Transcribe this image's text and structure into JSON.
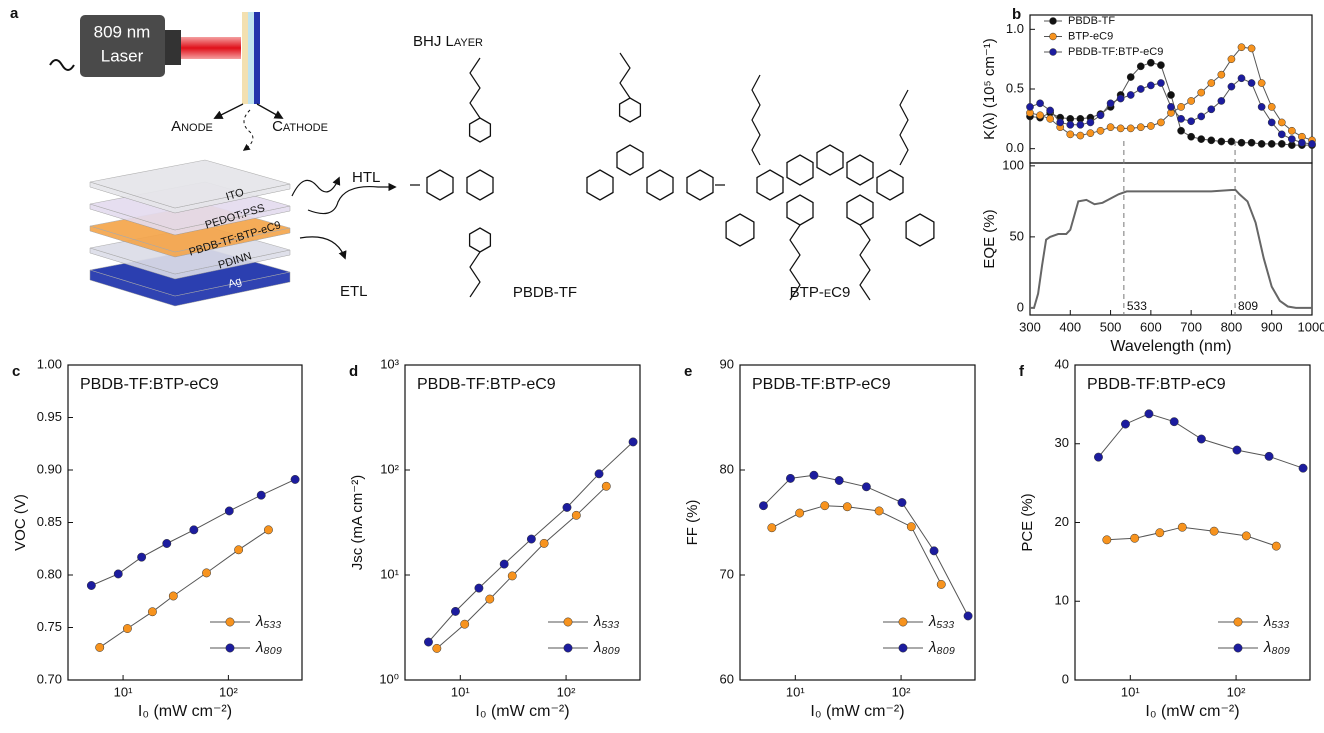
{
  "diagram": {
    "panel": "a",
    "laser": [
      "809 nm",
      "Laser"
    ],
    "anode": "Anode",
    "cathode": "Cathode",
    "layers": [
      "ITO",
      "PEDOT:PSS",
      "PBDB-TF:BTP-eC9",
      "PDINN",
      "Ag"
    ],
    "htl": "HTL",
    "etl": "ETL",
    "bhj": "BHJ Layer",
    "molecules": [
      "PBDB-TF",
      "BTP-eC9"
    ]
  },
  "chart_data": [
    {
      "type": "line",
      "panel": "b",
      "ylabel": "K(λ) (10⁵ cm⁻¹)",
      "marker": true,
      "legend": "upper left",
      "x": [
        300,
        325,
        350,
        375,
        400,
        425,
        450,
        475,
        500,
        525,
        550,
        575,
        600,
        625,
        650,
        675,
        700,
        725,
        750,
        775,
        800,
        825,
        850,
        875,
        900,
        925,
        950,
        975,
        1000
      ],
      "xlim": [
        300,
        1000
      ],
      "ylim": [
        -0.12,
        1.12
      ],
      "yticks": [
        {
          "value": 0,
          "label": "0.0"
        },
        0.5,
        {
          "value": 1,
          "label": "1.0"
        }
      ],
      "series": [
        {
          "name": "PBDB-TF",
          "color": "#111111",
          "values": [
            0.27,
            0.26,
            0.3,
            0.26,
            0.25,
            0.25,
            0.26,
            0.29,
            0.35,
            0.45,
            0.6,
            0.69,
            0.72,
            0.7,
            0.45,
            0.15,
            0.1,
            0.08,
            0.07,
            0.06,
            0.06,
            0.05,
            0.05,
            0.04,
            0.04,
            0.04,
            0.03,
            0.03,
            0.03
          ]
        },
        {
          "name": "BTP-eC9",
          "color": "#f7931e",
          "values": [
            0.3,
            0.28,
            0.25,
            0.18,
            0.12,
            0.11,
            0.13,
            0.15,
            0.18,
            0.17,
            0.17,
            0.18,
            0.19,
            0.22,
            0.3,
            0.35,
            0.4,
            0.47,
            0.55,
            0.62,
            0.75,
            0.85,
            0.84,
            0.55,
            0.35,
            0.22,
            0.15,
            0.1,
            0.07
          ]
        },
        {
          "name": "PBDB-TF:BTP-eC9",
          "color": "#1c1c9e",
          "values": [
            0.35,
            0.38,
            0.32,
            0.22,
            0.2,
            0.2,
            0.22,
            0.28,
            0.38,
            0.42,
            0.45,
            0.5,
            0.53,
            0.55,
            0.35,
            0.25,
            0.23,
            0.27,
            0.33,
            0.4,
            0.52,
            0.59,
            0.55,
            0.35,
            0.22,
            0.12,
            0.08,
            0.05,
            0.04
          ]
        }
      ]
    },
    {
      "type": "line",
      "ylabel": "EQE (%)",
      "xlabel": "Wavelength (nm)",
      "marker": false,
      "x": [
        300,
        310,
        320,
        330,
        340,
        350,
        370,
        390,
        400,
        410,
        420,
        440,
        460,
        480,
        500,
        520,
        540,
        560,
        600,
        650,
        700,
        750,
        800,
        810,
        820,
        840,
        860,
        880,
        900,
        920,
        940,
        960,
        980,
        1000
      ],
      "xlim": [
        300,
        1000
      ],
      "xticks": [
        300,
        400,
        500,
        600,
        700,
        800,
        900,
        1000
      ],
      "ylim": [
        -5,
        102
      ],
      "yticks": [
        0,
        50,
        100
      ],
      "annotations": [
        {
          "x": 533,
          "text": "533"
        },
        {
          "x": 809,
          "text": "809"
        }
      ],
      "series": [
        {
          "color": "#666666",
          "values": [
            0,
            0,
            10,
            30,
            48,
            50,
            52,
            52,
            55,
            65,
            75,
            76,
            73,
            74,
            77,
            80,
            82,
            82,
            82,
            82,
            82,
            82,
            83,
            83,
            80,
            75,
            60,
            35,
            15,
            5,
            1,
            0,
            0,
            0
          ]
        }
      ]
    },
    {
      "type": "line",
      "panel": "c",
      "title": "PBDB-TF:BTP-eC9",
      "ylabel": "VOC (V)",
      "xlabel": "I₀ (mW cm⁻²)",
      "marker": true,
      "xlog": true,
      "xlim": [
        3,
        500
      ],
      "xticks": [
        {
          "value": 10,
          "label": "10¹"
        },
        {
          "value": 100,
          "label": "10²"
        }
      ],
      "ylim": [
        0.7,
        1.0
      ],
      "yticks": [
        {
          "value": 0.7,
          "label": "0.70"
        },
        0.75,
        {
          "value": 0.8,
          "label": "0.80"
        },
        0.85,
        {
          "value": 0.9,
          "label": "0.90"
        },
        0.95,
        {
          "value": 1.0,
          "label": "1.00"
        }
      ],
      "legend": "lower right",
      "series": [
        {
          "name": "λ₅₃₃",
          "color": "#f7931e",
          "x": [
            6,
            11,
            19,
            30,
            62,
            125,
            240
          ],
          "values": [
            0.731,
            0.749,
            0.765,
            0.78,
            0.802,
            0.824,
            0.843
          ]
        },
        {
          "name": "λ₈₀₉",
          "color": "#1c1c9e",
          "x": [
            5,
            9,
            15,
            26,
            47,
            102,
            205,
            430
          ],
          "values": [
            0.79,
            0.801,
            0.817,
            0.83,
            0.843,
            0.861,
            0.876,
            0.891
          ]
        }
      ]
    },
    {
      "type": "line",
      "panel": "d",
      "title": "PBDB-TF:BTP-eC9",
      "ylabel": "Jsc (mA cm⁻²)",
      "xlabel": "I₀ (mW cm⁻²)",
      "marker": true,
      "xlog": true,
      "xlim": [
        3,
        500
      ],
      "xticks": [
        {
          "value": 10,
          "label": "10¹"
        },
        {
          "value": 100,
          "label": "10²"
        }
      ],
      "ylog": true,
      "ylim": [
        1,
        1000
      ],
      "yticks": [
        {
          "value": 1,
          "label": "10⁰"
        },
        {
          "value": 10,
          "label": "10¹"
        },
        {
          "value": 100,
          "label": "10²"
        },
        {
          "value": 1000,
          "label": "10³"
        }
      ],
      "legend": "lower right",
      "series": [
        {
          "name": "λ₅₃₃",
          "color": "#f7931e",
          "x": [
            6,
            11,
            19,
            31,
            62,
            125,
            240
          ],
          "values": [
            2.0,
            3.4,
            5.9,
            9.8,
            20,
            37,
            70
          ]
        },
        {
          "name": "λ₈₀₉",
          "color": "#1c1c9e",
          "x": [
            5,
            9,
            15,
            26,
            47,
            102,
            205,
            430
          ],
          "values": [
            2.3,
            4.5,
            7.5,
            12.7,
            22,
            44,
            92,
            185
          ]
        }
      ]
    },
    {
      "type": "line",
      "panel": "e",
      "title": "PBDB-TF:BTP-eC9",
      "ylabel": "FF (%)",
      "xlabel": "I₀ (mW cm⁻²)",
      "marker": true,
      "xlog": true,
      "xlim": [
        3,
        500
      ],
      "xticks": [
        {
          "value": 10,
          "label": "10¹"
        },
        {
          "value": 100,
          "label": "10²"
        }
      ],
      "ylim": [
        60,
        90
      ],
      "yticks": [
        60,
        70,
        80,
        90
      ],
      "legend": "lower right",
      "series": [
        {
          "name": "λ₅₃₃",
          "color": "#f7931e",
          "x": [
            6,
            11,
            19,
            31,
            62,
            125,
            240
          ],
          "values": [
            74.5,
            75.9,
            76.6,
            76.5,
            76.1,
            74.6,
            69.1
          ]
        },
        {
          "name": "λ₈₀₉",
          "color": "#1c1c9e",
          "x": [
            5,
            9,
            15,
            26,
            47,
            102,
            205,
            430
          ],
          "values": [
            76.6,
            79.2,
            79.5,
            79.0,
            78.4,
            76.9,
            72.3,
            66.1
          ]
        }
      ]
    },
    {
      "type": "line",
      "panel": "f",
      "title": "PBDB-TF:BTP-eC9",
      "ylabel": "PCE (%)",
      "xlabel": "I₀ (mW cm⁻²)",
      "marker": true,
      "xlog": true,
      "xlim": [
        3,
        500
      ],
      "xticks": [
        {
          "value": 10,
          "label": "10¹"
        },
        {
          "value": 100,
          "label": "10²"
        }
      ],
      "ylim": [
        0,
        40
      ],
      "yticks": [
        0,
        10,
        20,
        30,
        40
      ],
      "legend": "lower right",
      "series": [
        {
          "name": "λ₅₃₃",
          "color": "#f7931e",
          "x": [
            6,
            11,
            19,
            31,
            62,
            125,
            240
          ],
          "values": [
            17.8,
            18.0,
            18.7,
            19.4,
            18.9,
            18.3,
            17.0
          ]
        },
        {
          "name": "λ₈₀₉",
          "color": "#1c1c9e",
          "x": [
            5,
            9,
            15,
            26,
            47,
            102,
            205,
            430
          ],
          "values": [
            28.3,
            32.5,
            33.8,
            32.8,
            30.6,
            29.2,
            28.4,
            26.9
          ]
        }
      ]
    }
  ]
}
